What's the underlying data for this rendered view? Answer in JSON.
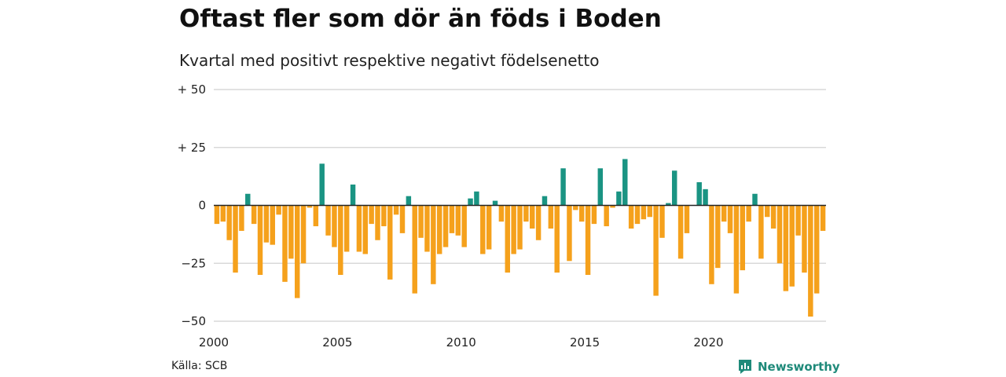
{
  "title": "Oftast fler som dör än föds i Boden",
  "subtitle": "Kvartal med positivt respektive negativt födelsenetto",
  "source": "Källa: SCB",
  "brand": {
    "name": "Newsworthy",
    "icon": "newsworthy-logo-icon"
  },
  "colors": {
    "positive": "#1a9483",
    "negative": "#f5a11c",
    "grid": "#d9d9d9",
    "zero": "#222222"
  },
  "chart_data": {
    "type": "bar",
    "title": "Oftast fler som dör än föds i Boden",
    "subtitle": "Kvartal med positivt respektive negativt födelsenetto",
    "xlabel": "",
    "ylabel": "",
    "x_start": 2000.0,
    "x_step": 0.25,
    "xlim": [
      2000,
      2024.75
    ],
    "ylim": [
      -50,
      50
    ],
    "yticks": [
      50,
      25,
      0,
      -25,
      -50
    ],
    "ytick_labels": [
      "+ 50",
      "+ 25",
      "0",
      "−25",
      "−50"
    ],
    "xticks": [
      2000,
      2005,
      2010,
      2015,
      2020
    ],
    "xtick_labels": [
      "2000",
      "2005",
      "2010",
      "2015",
      "2020"
    ],
    "grid": true,
    "values": [
      -8,
      -7,
      -15,
      -29,
      -11,
      5,
      -8,
      -30,
      -16,
      -17,
      -4,
      -33,
      -23,
      -40,
      -25,
      -1,
      -9,
      18,
      -13,
      -18,
      -30,
      -20,
      9,
      -20,
      -21,
      -8,
      -15,
      -9,
      -32,
      -4,
      -12,
      4,
      -38,
      -14,
      -20,
      -34,
      -21,
      -18,
      -12,
      -13,
      -18,
      3,
      6,
      -21,
      -19,
      2,
      -7,
      -29,
      -21,
      -19,
      -7,
      -10,
      -15,
      4,
      -10,
      -29,
      16,
      -24,
      -2,
      -7,
      -30,
      -8,
      16,
      -9,
      -1,
      6,
      20,
      -10,
      -8,
      -6,
      -5,
      -39,
      -14,
      1,
      15,
      -23,
      -12,
      0,
      10,
      7,
      -34,
      -27,
      -7,
      -12,
      -38,
      -28,
      -7,
      5,
      -23,
      -5,
      -10,
      -25,
      -37,
      -35,
      -13,
      -29,
      -48,
      -38,
      -11
    ]
  }
}
